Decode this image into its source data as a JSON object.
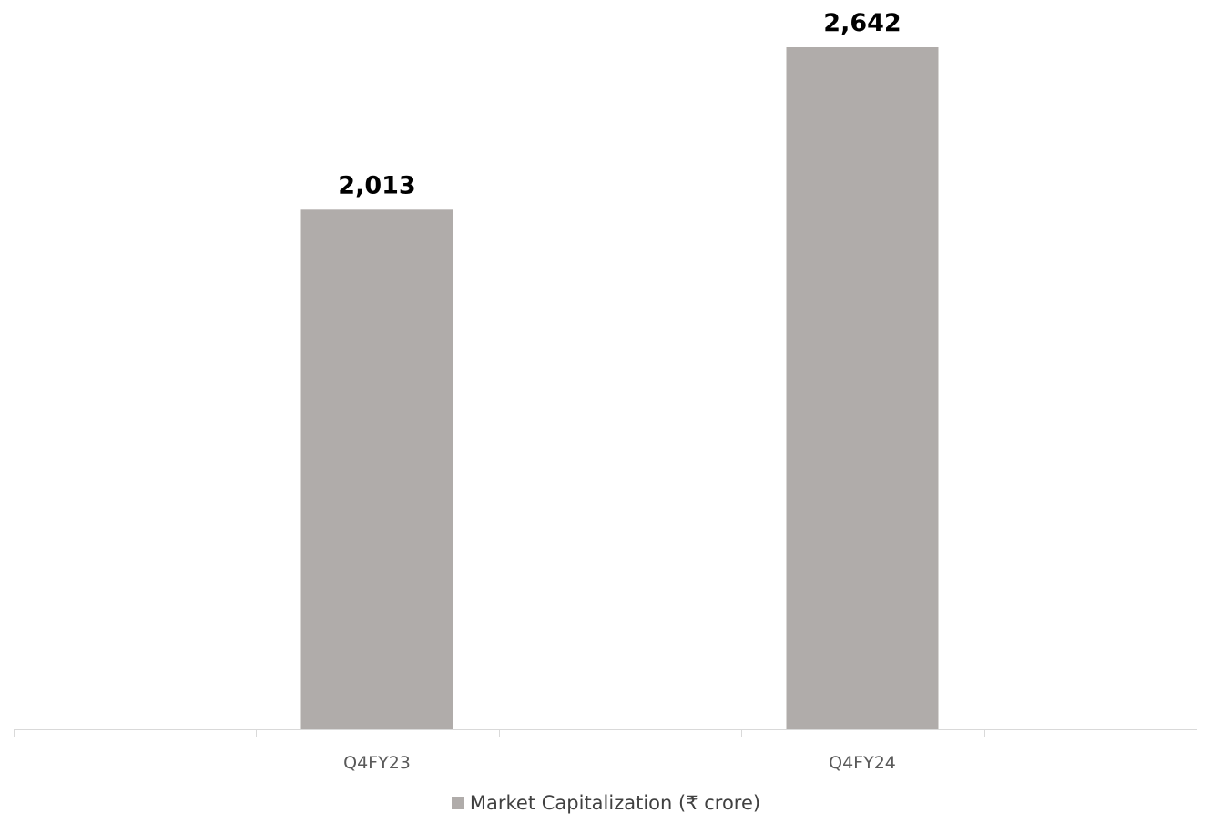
{
  "chart_data": {
    "type": "bar",
    "categories": [
      "Q4FY23",
      "Q4FY24"
    ],
    "series": [
      {
        "name": "Market Capitalization (₹ crore)",
        "values": [
          2013,
          2642
        ],
        "value_labels": [
          "2,013",
          "2,642"
        ],
        "color": "#b0acaa"
      }
    ],
    "ylim": [
      0,
      2642
    ],
    "grid": false,
    "legend_position": "bottom-center",
    "colors": {
      "bar": "#b0acaa",
      "axis": "#d9d9d9",
      "tick_label": "#595959",
      "data_label": "#000000",
      "legend_text": "#404040"
    }
  }
}
